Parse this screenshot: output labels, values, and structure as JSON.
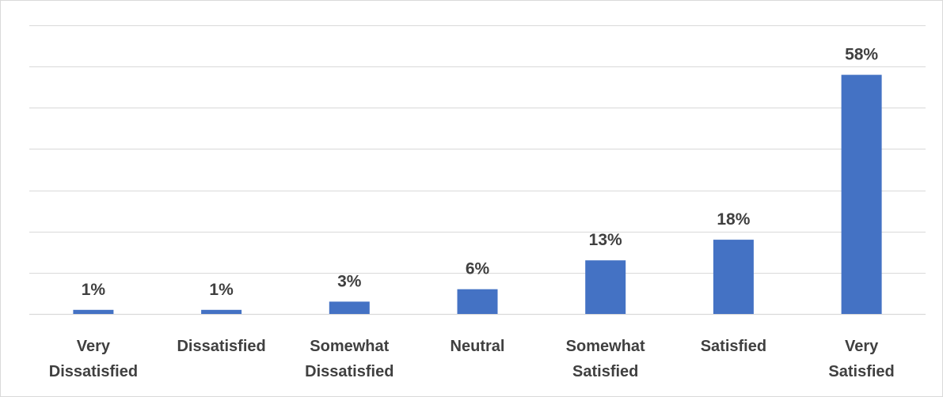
{
  "chart_data": {
    "type": "bar",
    "categories": [
      [
        "Very",
        "Dissatisfied"
      ],
      [
        "Dissatisfied"
      ],
      [
        "Somewhat",
        "Dissatisfied"
      ],
      [
        "Neutral"
      ],
      [
        "Somewhat",
        "Satisfied"
      ],
      [
        "Satisfied"
      ],
      [
        "Very",
        "Satisfied"
      ]
    ],
    "values": [
      1,
      1,
      3,
      6,
      13,
      18,
      58
    ],
    "data_labels": [
      "1%",
      "1%",
      "3%",
      "6%",
      "13%",
      "18%",
      "58%"
    ],
    "title": "",
    "xlabel": "",
    "ylabel": "",
    "ylim": [
      0,
      70
    ],
    "grid": true,
    "bar_color": "#4472c4",
    "legend": "none"
  }
}
